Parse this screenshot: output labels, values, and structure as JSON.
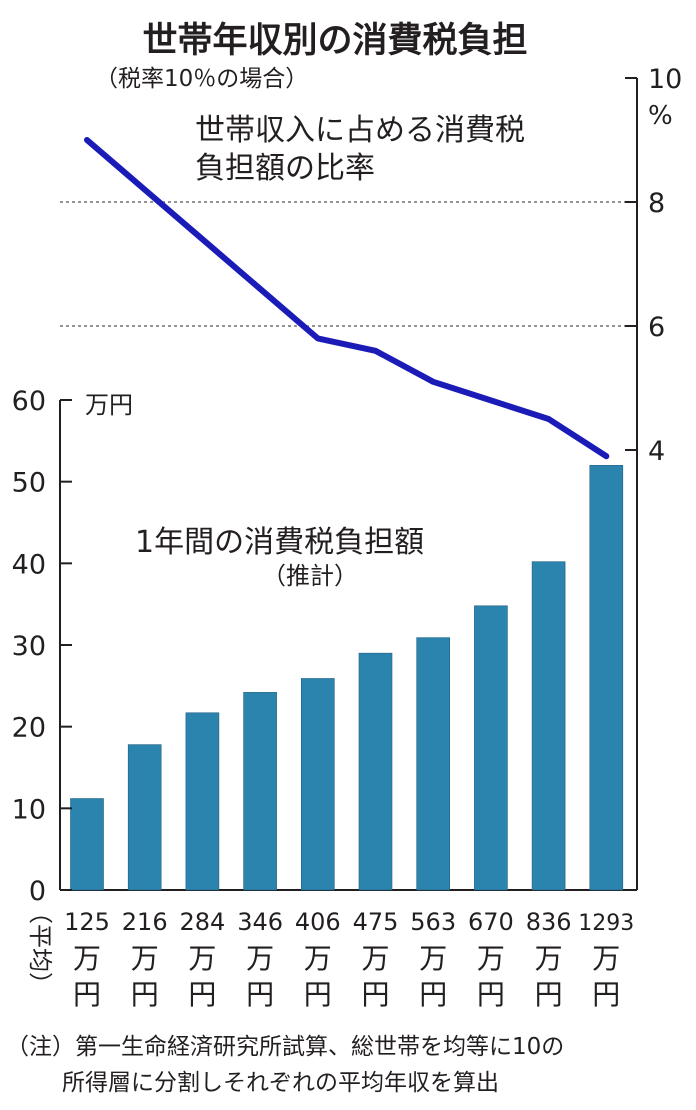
{
  "chart_data": {
    "title": "世帯年収別の消費税負担",
    "subtitle": "（税率10％の場合）",
    "line": {
      "type": "line",
      "label_lines": [
        "世帯収入に占める消費税",
        "負担額の比率"
      ],
      "unit": "%",
      "color": "#1b1cb8",
      "y_range": [
        4,
        10
      ],
      "y_ticks": [
        "10",
        "8",
        "6",
        "4"
      ],
      "gridlines_at": [
        8,
        6
      ],
      "values": [
        9.0,
        8.2,
        7.4,
        6.6,
        5.8,
        5.6,
        5.1,
        4.8,
        4.5,
        3.9
      ]
    },
    "bars": {
      "type": "bar",
      "label_lines": [
        "1年間の消費税負担額",
        "（推計）"
      ],
      "unit": "万円",
      "color": "#2b84ad",
      "y_range": [
        0,
        60
      ],
      "y_ticks": [
        "60",
        "50",
        "40",
        "30",
        "20",
        "10",
        "0"
      ],
      "values": [
        11.2,
        17.8,
        21.7,
        24.2,
        25.9,
        29.0,
        30.9,
        34.8,
        40.2,
        52.0
      ]
    },
    "x_axis": {
      "label": "（平均）",
      "categories": [
        "125",
        "216",
        "284",
        "346",
        "406",
        "475",
        "563",
        "670",
        "836",
        "1293"
      ],
      "unit": "万円"
    },
    "note_lines": [
      "（注）第一生命経済研究所試算、総世帯を均等に10の",
      "所得層に分割しそれぞれの平均年収を算出"
    ]
  }
}
